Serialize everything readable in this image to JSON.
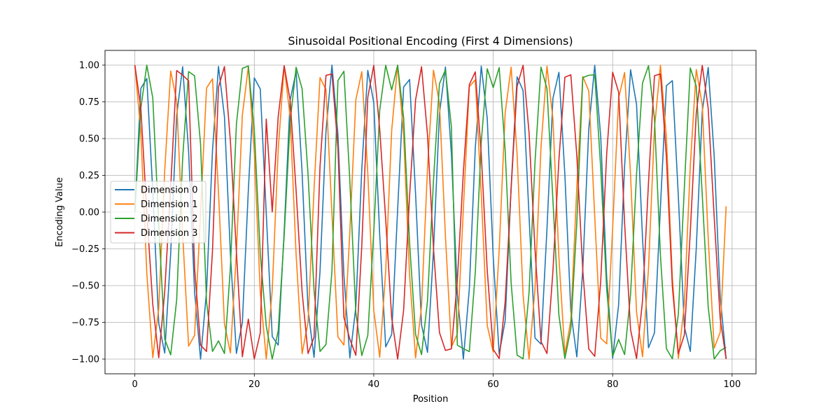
{
  "chart_data": {
    "type": "line",
    "title": "Sinusoidal Positional Encoding (First 4 Dimensions)",
    "xlabel": "Position",
    "ylabel": "Encoding Value",
    "xlim": [
      -5,
      104
    ],
    "ylim": [
      -1.1,
      1.1
    ],
    "xticks": [
      0,
      20,
      40,
      60,
      80,
      100
    ],
    "xtick_labels": [
      "0",
      "20",
      "40",
      "60",
      "80",
      "100"
    ],
    "yticks": [
      -1.0,
      -0.75,
      -0.5,
      -0.25,
      0.0,
      0.25,
      0.5,
      0.75,
      1.0
    ],
    "ytick_labels": [
      "−1.00",
      "−0.75",
      "−0.50",
      "−0.25",
      "0.00",
      "0.25",
      "0.50",
      "0.75",
      "1.00"
    ],
    "grid": true,
    "legend_position": "center-left",
    "x": [
      0,
      1,
      2,
      3,
      4,
      5,
      6,
      7,
      8,
      9,
      10,
      11,
      12,
      13,
      14,
      15,
      16,
      17,
      18,
      19,
      20,
      21,
      22,
      23,
      24,
      25,
      26,
      27,
      28,
      29,
      30,
      31,
      32,
      33,
      34,
      35,
      36,
      37,
      38,
      39,
      40,
      41,
      42,
      43,
      44,
      45,
      46,
      47,
      48,
      49,
      50,
      51,
      52,
      53,
      54,
      55,
      56,
      57,
      58,
      59,
      60,
      61,
      62,
      63,
      64,
      65,
      66,
      67,
      68,
      69,
      70,
      71,
      72,
      73,
      74,
      75,
      76,
      77,
      78,
      79,
      80,
      81,
      82,
      83,
      84,
      85,
      86,
      87,
      88,
      89,
      90,
      91,
      92,
      93,
      94,
      95,
      96,
      97,
      98,
      99
    ],
    "series": [
      {
        "name": "Dimension 0",
        "color": "#1f77b4",
        "values": [
          0,
          0.841,
          0.909,
          0.141,
          -0.757,
          -0.959,
          -0.279,
          0.657,
          0.989,
          0.412,
          -0.544,
          -1,
          -0.537,
          0.42,
          0.991,
          0.65,
          -0.288,
          -0.961,
          -0.751,
          0.15,
          0.913,
          0.837,
          -0.009,
          -0.846,
          -0.905,
          -0.132,
          0.763,
          0.956,
          0.271,
          -0.664,
          -0.988,
          -0.404,
          0.551,
          1,
          0.529,
          -0.428,
          -0.992,
          -0.644,
          0.296,
          0.964,
          0.745,
          -0.159,
          -0.917,
          -0.832,
          0.018,
          0.851,
          0.902,
          0.124,
          -0.768,
          -0.954,
          -0.262,
          0.67,
          0.987,
          0.396,
          -0.559,
          -1,
          -0.522,
          0.436,
          0.993,
          0.637,
          -0.305,
          -0.966,
          -0.739,
          0.167,
          0.92,
          0.827,
          -0.027,
          -0.856,
          -0.898,
          -0.115,
          0.774,
          0.951,
          0.254,
          -0.677,
          -0.985,
          -0.388,
          0.566,
          0.999,
          0.514,
          -0.444,
          -0.994,
          -0.63,
          0.313,
          0.968,
          0.733,
          -0.176,
          -0.923,
          -0.822,
          0.035,
          0.86,
          0.894,
          0.106,
          -0.779,
          -0.948,
          -0.245,
          0.683,
          0.984,
          0.38,
          -0.573,
          -0.999
        ]
      },
      {
        "name": "Dimension 1",
        "color": "#ff7f0e",
        "values": [
          1,
          0.54,
          -0.416,
          -0.99,
          -0.654,
          0.284,
          0.96,
          0.754,
          -0.146,
          -0.911,
          -0.839,
          0.004,
          0.844,
          0.907,
          0.137,
          -0.76,
          -0.958,
          -0.275,
          0.66,
          0.989,
          0.408,
          -0.548,
          -1,
          -0.533,
          0.424,
          0.991,
          0.647,
          -0.292,
          -0.963,
          -0.748,
          0.154,
          0.915,
          0.834,
          -0.013,
          -0.849,
          -0.904,
          -0.128,
          0.765,
          0.955,
          0.267,
          -0.667,
          -0.987,
          -0.4,
          0.555,
          1,
          0.525,
          -0.432,
          -0.992,
          -0.641,
          0.3,
          0.965,
          0.742,
          -0.163,
          -0.918,
          -0.829,
          0.022,
          0.853,
          0.9,
          0.119,
          -0.771,
          -0.952,
          -0.258,
          0.674,
          0.986,
          0.392,
          -0.562,
          -1,
          -0.518,
          0.44,
          0.993,
          0.633,
          -0.309,
          -0.967,
          -0.736,
          0.172,
          0.922,
          0.824,
          -0.031,
          -0.858,
          -0.896,
          -0.11,
          0.776,
          0.949,
          0.25,
          -0.68,
          -0.984,
          -0.384,
          0.57,
          0.999,
          0.51,
          -0.448,
          -0.995,
          -0.627,
          0.318,
          0.97,
          0.73,
          -0.18,
          -0.925,
          -0.819,
          0.04
        ]
      },
      {
        "name": "Dimension 2",
        "color": "#2ca02c",
        "values": [
          0,
          0.706,
          1,
          0.776,
          -0.082,
          -0.864,
          -0.971,
          -0.597,
          0.366,
          0.956,
          0.927,
          0.462,
          -0.609,
          -0.948,
          -0.876,
          -0.962,
          -0.374,
          0.597,
          0.978,
          0.994,
          0.558,
          -0.282,
          -0.775,
          -1,
          -0.808,
          -0.162,
          0.617,
          0.985,
          0.839,
          0.255,
          -0.531,
          -0.948,
          -0.901,
          -0.401,
          0.895,
          0.958,
          0.207,
          -0.685,
          -0.976,
          -0.839,
          -0.135,
          0.694,
          0.999,
          0.831,
          0.999,
          0.642,
          -0.21,
          -0.832,
          -0.969,
          -0.603,
          0.215,
          0.874,
          0.967,
          0.58,
          -0.905,
          -0.929,
          -0.949,
          -0.411,
          0.478,
          0.975,
          0.847,
          0.983,
          0.421,
          -0.481,
          -0.973,
          -0.998,
          -0.548,
          0.341,
          0.986,
          0.84,
          0.08,
          -0.702,
          -0.996,
          -0.793,
          -0.072,
          0.915,
          0.931,
          0.934,
          0.299,
          -0.526,
          -0.981,
          -0.866,
          -0.969,
          -0.559,
          0.259,
          0.878,
          0.996,
          0.637,
          -0.296,
          -0.929,
          -0.998,
          -0.694,
          0.164,
          0.981,
          0.856,
          0.117,
          -0.647,
          -0.999,
          -0.943,
          -0.92
        ]
      },
      {
        "name": "Dimension 3",
        "color": "#d62728",
        "values": [
          1,
          0.708,
          -0.001,
          -0.629,
          -0.991,
          -0.54,
          0.167,
          0.963,
          0.932,
          0.893,
          -0.379,
          -0.905,
          -0.948,
          -0.262,
          0.85,
          0.99,
          0.481,
          -0.27,
          -0.984,
          -0.728,
          -0.999,
          -0.822,
          0.633,
          0.002,
          0.649,
          0.996,
          0.76,
          0.144,
          -0.542,
          -0.962,
          -0.851,
          0.31,
          0.93,
          0.94,
          0.44,
          -0.717,
          -0.864,
          -0.974,
          -0.225,
          0.781,
          0.998,
          0.562,
          -0.051,
          -0.719,
          -1,
          -0.667,
          0.112,
          0.763,
          0.989,
          0.524,
          -0.247,
          -0.819,
          -0.941,
          -0.93,
          -0.462,
          0.271,
          0.867,
          0.954,
          0.395,
          -0.398,
          -0.934,
          -0.996,
          -0.611,
          0.16,
          0.855,
          0.999,
          0.541,
          -0.256,
          -0.88,
          -0.962,
          -0.401,
          0.355,
          0.918,
          0.934,
          0.383,
          -0.398,
          -0.931,
          -0.981,
          -0.47,
          0.395,
          0.951,
          0.816,
          -0.075,
          -0.801,
          -0.996,
          -0.603,
          0.199,
          0.928,
          0.94,
          0.372,
          -0.509,
          -0.963,
          -0.836,
          -0.134,
          0.674,
          0.998,
          0.705,
          -0.034,
          -0.722,
          -1
        ]
      }
    ]
  }
}
